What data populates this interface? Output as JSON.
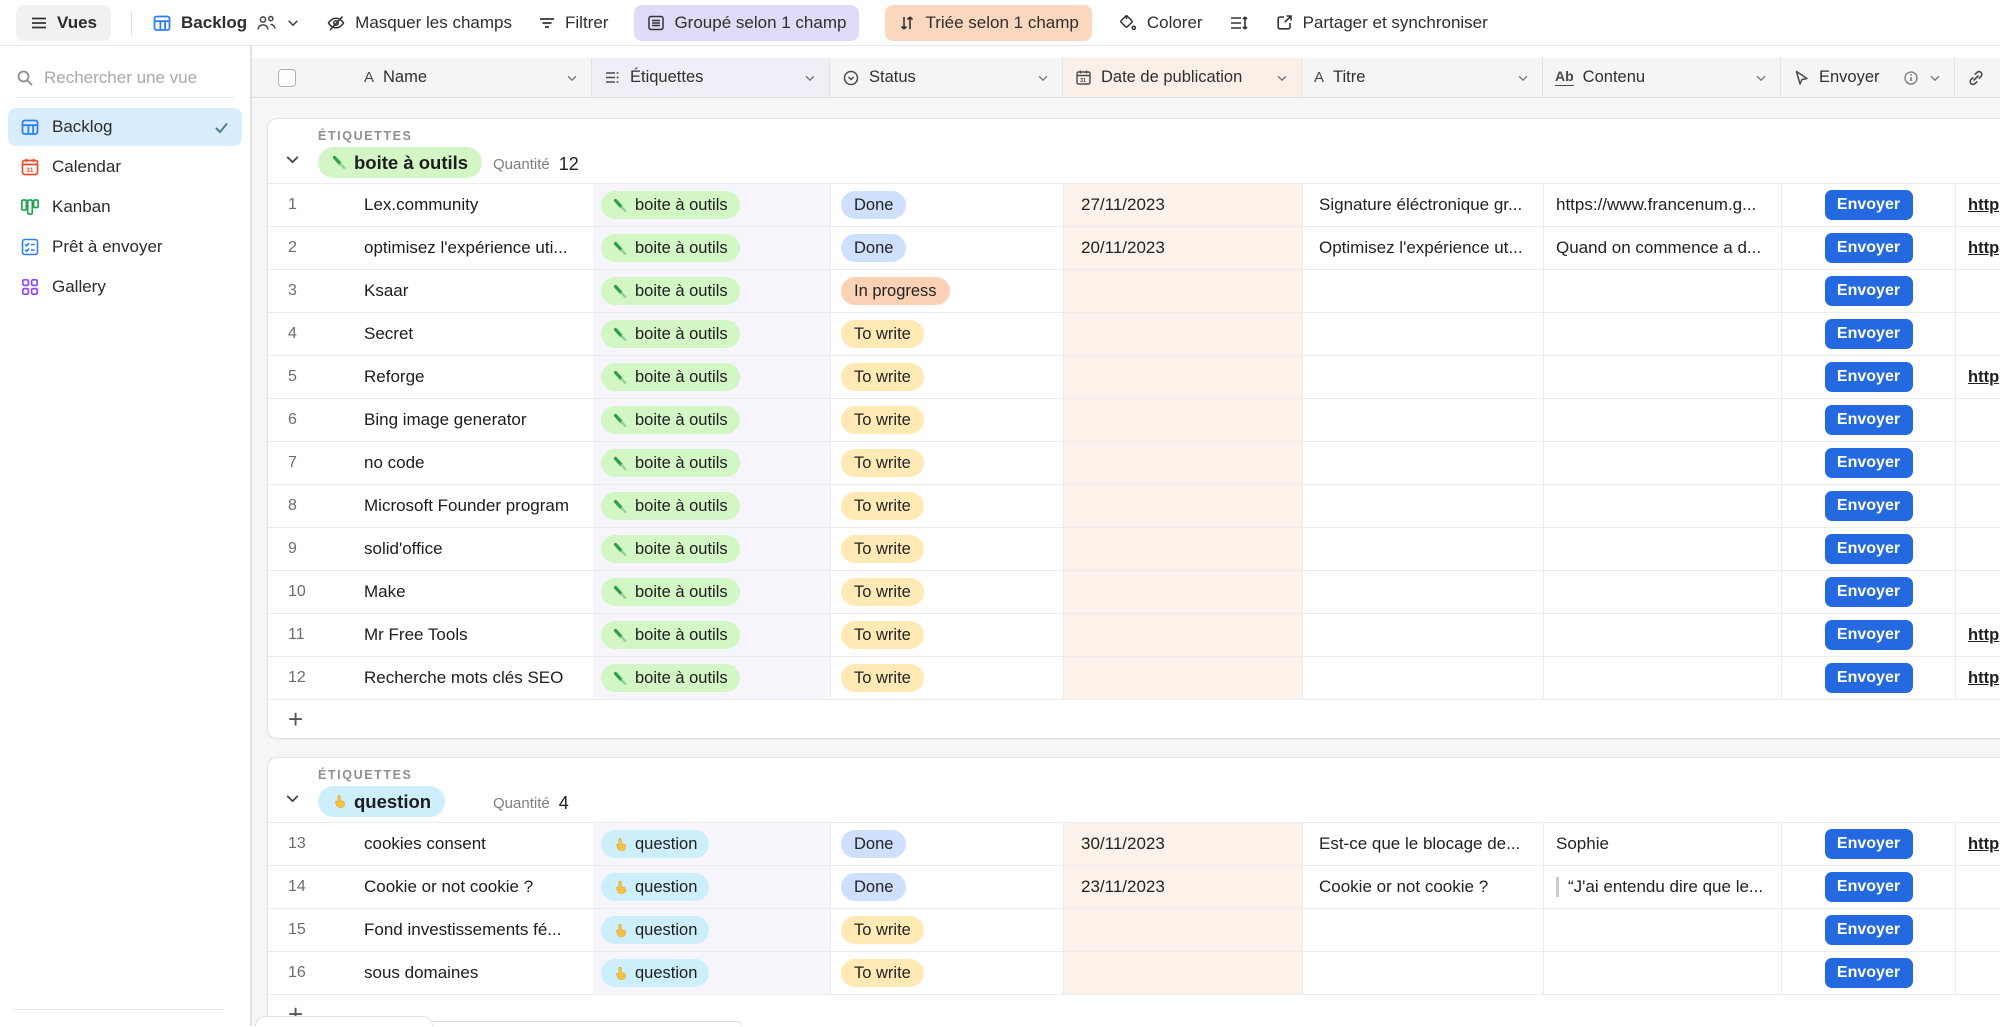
{
  "toolbar": {
    "views_button": "Vues",
    "view_name": "Backlog",
    "hide_fields": "Masquer les champs",
    "filter": "Filtrer",
    "group": "Groupé selon 1 champ",
    "sort": "Triée selon 1 champ",
    "color": "Colorer",
    "share": "Partager et synchroniser"
  },
  "sidebar": {
    "search_placeholder": "Rechercher une vue",
    "views": [
      {
        "label": "Backlog",
        "type": "grid",
        "selected": true
      },
      {
        "label": "Calendar",
        "type": "calendar",
        "selected": false
      },
      {
        "label": "Kanban",
        "type": "kanban",
        "selected": false
      },
      {
        "label": "Prêt à envoyer",
        "type": "checklist",
        "selected": false
      },
      {
        "label": "Gallery",
        "type": "gallery",
        "selected": false
      }
    ]
  },
  "grid": {
    "columns": [
      "Name",
      "Étiquettes",
      "Status",
      "Date de publication",
      "Titre",
      "Contenu",
      "Envoyer"
    ],
    "group_field_label": "ÉTIQUETTES",
    "count_label": "Quantité",
    "button_label": "Envoyer",
    "status_colors": {
      "Done": "#cfdfff",
      "In progress": "#fbd2b6",
      "To write": "#ffeab6"
    },
    "tag_colors": {
      "green": "#d3f6c5",
      "cyan": "#cdeffc"
    },
    "groups": [
      {
        "tag": "boite à outils",
        "tag_color": "green",
        "count": "12",
        "rows": [
          {
            "num": "1",
            "name": "Lex.community",
            "status": "Done",
            "date": "27/11/2023",
            "titre": "Signature éléctronique gr...",
            "contenu": "https://www.francenum.g...",
            "link": "http"
          },
          {
            "num": "2",
            "name": "optimisez l'expérience uti...",
            "status": "Done",
            "date": "20/11/2023",
            "titre": "Optimisez l'expérience ut...",
            "contenu": "Quand on commence a d...",
            "link": "http"
          },
          {
            "num": "3",
            "name": "Ksaar",
            "status": "In progress"
          },
          {
            "num": "4",
            "name": "Secret",
            "status": "To write"
          },
          {
            "num": "5",
            "name": "Reforge",
            "status": "To write",
            "link": "http"
          },
          {
            "num": "6",
            "name": "Bing image generator",
            "status": "To write"
          },
          {
            "num": "7",
            "name": "no code",
            "status": "To write"
          },
          {
            "num": "8",
            "name": "Microsoft Founder program",
            "status": "To write"
          },
          {
            "num": "9",
            "name": "solid'office",
            "status": "To write"
          },
          {
            "num": "10",
            "name": "Make",
            "status": "To write"
          },
          {
            "num": "11",
            "name": "Mr Free Tools",
            "status": "To write",
            "link": "http"
          },
          {
            "num": "12",
            "name": "Recherche mots clés SEO",
            "status": "To write",
            "link": "http"
          }
        ]
      },
      {
        "tag": "question",
        "tag_color": "cyan",
        "count": "4",
        "rows": [
          {
            "num": "13",
            "name": "cookies consent",
            "status": "Done",
            "date": "30/11/2023",
            "titre": "Est-ce que le blocage de...",
            "contenu": "Sophie",
            "link": "http"
          },
          {
            "num": "14",
            "name": "Cookie or not cookie ?",
            "status": "Done",
            "date": "23/11/2023",
            "titre": "Cookie or not cookie ?",
            "contenu": "“J'ai entendu dire que le...",
            "quote": true
          },
          {
            "num": "15",
            "name": "Fond investissements fé...",
            "status": "To write"
          },
          {
            "num": "16",
            "name": "sous domaines",
            "status": "To write"
          }
        ]
      }
    ]
  },
  "colors": {
    "accent_button": "#2569e0",
    "selected_view_bg": "#d9edfc",
    "group_toolbar_pill": "#e1dbf7",
    "sort_toolbar_pill": "#fbd8bd",
    "tag_column_tint": "#f7f5fc",
    "date_column_tint": "#fdf2ea"
  }
}
